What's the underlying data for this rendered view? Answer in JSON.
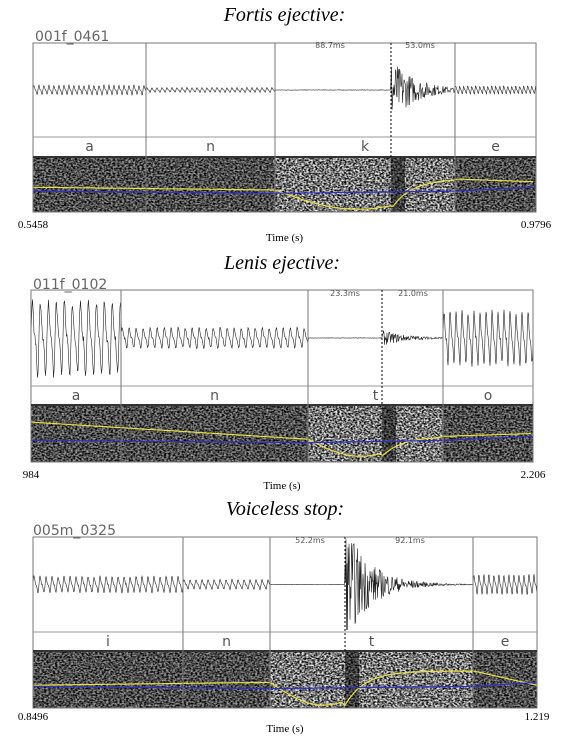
{
  "panels": [
    {
      "title": "Fortis ejective:",
      "file": "001f_0461",
      "segments": [
        "a",
        "n",
        "k",
        "e"
      ],
      "durations": [
        "88.7ms",
        "53.0ms"
      ],
      "time_start": "0.5458",
      "time_end": "0.9796",
      "time_label": "Time (s)"
    },
    {
      "title": "Lenis ejective:",
      "file": "011f_0102",
      "segments": [
        "a",
        "n",
        "t",
        "o"
      ],
      "durations": [
        "23.3ms",
        "21.0ms"
      ],
      "time_start": "984",
      "time_end": "2.206",
      "time_label": "Time (s)"
    },
    {
      "title": "Voiceless stop:",
      "file": "005m_0325",
      "segments": [
        "i",
        "n",
        "t",
        "e"
      ],
      "durations": [
        "52.2ms",
        "92.1ms"
      ],
      "time_start": "0.8496",
      "time_end": "1.219",
      "time_label": "Time (s)"
    }
  ]
}
